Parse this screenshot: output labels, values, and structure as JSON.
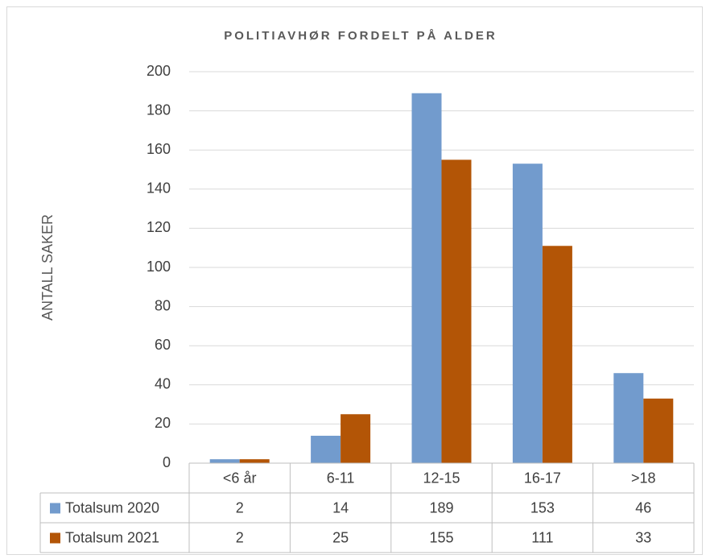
{
  "chart_data": {
    "type": "bar",
    "title": "POLITIAVHØR FORDELT PÅ ALDER",
    "y_label": "ANTALL SAKER",
    "categories": [
      "<6 år",
      "6-11",
      "12-15",
      "16-17",
      ">18"
    ],
    "series": [
      {
        "name": "Totalsum 2020",
        "color": "#729bcd",
        "values": [
          2,
          14,
          189,
          153,
          46
        ]
      },
      {
        "name": "Totalsum 2021",
        "color": "#b35506",
        "values": [
          2,
          25,
          155,
          111,
          33
        ]
      }
    ],
    "ylim": [
      0,
      200
    ],
    "yticks": [
      0,
      20,
      40,
      60,
      80,
      100,
      120,
      140,
      160,
      180,
      200
    ],
    "grid": true,
    "data_table": true
  }
}
